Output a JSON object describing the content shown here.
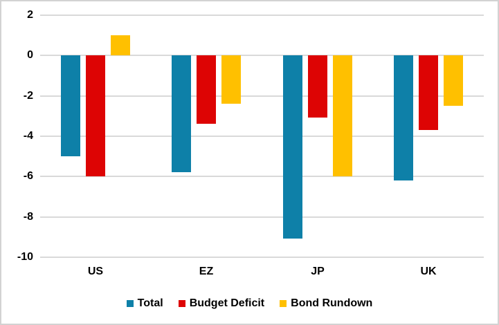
{
  "chart": {
    "background": "#ffffff",
    "border_color": "#d2d2d2",
    "gridline_color": "#d9d9d9",
    "text_color": "#000000"
  },
  "chart_data": {
    "type": "bar",
    "title": "",
    "xlabel": "",
    "ylabel": "",
    "categories": [
      "US",
      "EZ",
      "JP",
      "UK"
    ],
    "series": [
      {
        "name": "Total",
        "color": "#0e80a8",
        "values": [
          -5.0,
          -5.8,
          -9.1,
          -6.2
        ]
      },
      {
        "name": "Budget Deficit",
        "color": "#dd0404",
        "values": [
          -6.0,
          -3.4,
          -3.1,
          -3.7
        ]
      },
      {
        "name": "Bond Rundown",
        "color": "#ffc000",
        "values": [
          1.0,
          -2.4,
          -6.0,
          -2.5
        ]
      }
    ],
    "ylim": [
      -10,
      2
    ],
    "yticks": [
      2,
      0,
      -2,
      -4,
      -6,
      -8,
      -10
    ],
    "ytick_labels": [
      "2",
      "0",
      "-2",
      "-4",
      "-6",
      "-8",
      "-10"
    ],
    "grid": true,
    "legend_position": "bottom"
  }
}
